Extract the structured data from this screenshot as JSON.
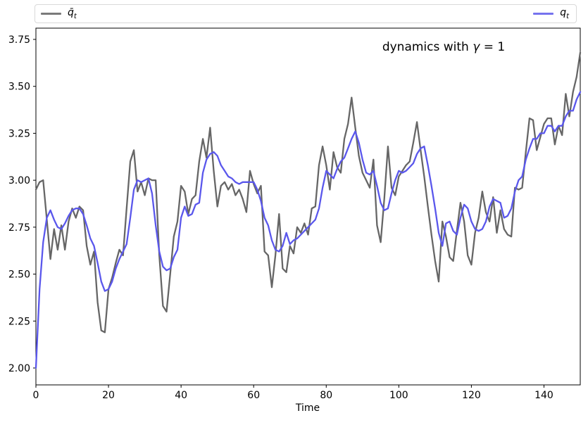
{
  "figure": {
    "background": "#ffffff",
    "annotation": {
      "pre": "dynamics with ",
      "gamma": "γ",
      "post": " = 1"
    },
    "xlabel": "Time"
  },
  "legend": {
    "border_color": "#d9d9d9",
    "entries": [
      {
        "base": "q̄",
        "sub": "t",
        "swatch_color": "#7a7a7a"
      },
      {
        "base": "q",
        "sub": "t",
        "swatch_color": "#7673ee"
      }
    ]
  },
  "chart_data": {
    "type": "line",
    "title": "dynamics with γ = 1",
    "xlabel": "Time",
    "ylabel": "",
    "xlim": [
      0,
      150
    ],
    "ylim": [
      1.91,
      3.81
    ],
    "x_ticks": [
      0,
      20,
      40,
      60,
      80,
      100,
      120,
      140
    ],
    "y_ticks": [
      "2.00",
      "2.25",
      "2.50",
      "2.75",
      "3.00",
      "3.25",
      "3.50",
      "3.75"
    ],
    "grid": false,
    "legend_position": "top, single box spanning plot width, q̄_t left / q_t right",
    "x_start": 0,
    "x_step": 1,
    "series": [
      {
        "name": "q̄_t",
        "color": "#666666",
        "values": [
          2.95,
          2.99,
          3.0,
          2.79,
          2.58,
          2.74,
          2.63,
          2.76,
          2.63,
          2.78,
          2.85,
          2.8,
          2.86,
          2.84,
          2.65,
          2.55,
          2.62,
          2.35,
          2.2,
          2.19,
          2.42,
          2.48,
          2.56,
          2.63,
          2.6,
          2.85,
          3.1,
          3.16,
          2.94,
          2.99,
          2.92,
          3.01,
          3.0,
          3.0,
          2.6,
          2.33,
          2.3,
          2.5,
          2.7,
          2.78,
          2.97,
          2.94,
          2.82,
          2.9,
          2.92,
          3.1,
          3.22,
          3.12,
          3.28,
          3.05,
          2.86,
          2.97,
          2.99,
          2.95,
          2.98,
          2.92,
          2.95,
          2.9,
          2.83,
          3.05,
          2.98,
          2.93,
          2.97,
          2.62,
          2.6,
          2.43,
          2.6,
          2.82,
          2.53,
          2.51,
          2.65,
          2.61,
          2.75,
          2.72,
          2.77,
          2.71,
          2.85,
          2.86,
          3.08,
          3.18,
          3.08,
          2.95,
          3.15,
          3.07,
          3.04,
          3.22,
          3.3,
          3.44,
          3.28,
          3.13,
          3.04,
          3.0,
          2.96,
          3.11,
          2.76,
          2.67,
          2.9,
          3.18,
          2.96,
          2.92,
          3.02,
          3.05,
          3.08,
          3.1,
          3.2,
          3.31,
          3.16,
          3.02,
          2.86,
          2.71,
          2.57,
          2.46,
          2.78,
          2.7,
          2.59,
          2.57,
          2.73,
          2.88,
          2.78,
          2.6,
          2.55,
          2.72,
          2.8,
          2.94,
          2.83,
          2.78,
          2.91,
          2.72,
          2.84,
          2.74,
          2.71,
          2.7,
          2.96,
          2.95,
          2.96,
          3.15,
          3.33,
          3.32,
          3.16,
          3.23,
          3.3,
          3.33,
          3.33,
          3.19,
          3.29,
          3.24,
          3.46,
          3.34,
          3.47,
          3.55,
          3.68
        ]
      },
      {
        "name": "q_t",
        "color": "#5a57ec",
        "values": [
          2.0,
          2.42,
          2.67,
          2.8,
          2.84,
          2.79,
          2.75,
          2.74,
          2.77,
          2.81,
          2.84,
          2.85,
          2.85,
          2.82,
          2.76,
          2.69,
          2.65,
          2.56,
          2.46,
          2.41,
          2.42,
          2.46,
          2.53,
          2.58,
          2.62,
          2.66,
          2.8,
          2.95,
          3.0,
          2.99,
          3.0,
          3.01,
          2.93,
          2.76,
          2.62,
          2.54,
          2.52,
          2.53,
          2.59,
          2.63,
          2.8,
          2.86,
          2.81,
          2.82,
          2.87,
          2.88,
          3.04,
          3.11,
          3.14,
          3.15,
          3.13,
          3.08,
          3.05,
          3.02,
          3.01,
          2.99,
          2.98,
          2.99,
          2.99,
          2.99,
          2.99,
          2.95,
          2.89,
          2.8,
          2.76,
          2.68,
          2.63,
          2.62,
          2.65,
          2.72,
          2.66,
          2.68,
          2.69,
          2.71,
          2.73,
          2.75,
          2.77,
          2.79,
          2.85,
          2.96,
          3.05,
          3.03,
          3.01,
          3.06,
          3.1,
          3.12,
          3.17,
          3.22,
          3.26,
          3.2,
          3.11,
          3.04,
          3.03,
          3.05,
          2.97,
          2.88,
          2.84,
          2.85,
          2.93,
          3.0,
          3.05,
          3.04,
          3.05,
          3.07,
          3.09,
          3.14,
          3.17,
          3.18,
          3.08,
          2.97,
          2.85,
          2.72,
          2.65,
          2.77,
          2.78,
          2.73,
          2.71,
          2.8,
          2.87,
          2.85,
          2.78,
          2.74,
          2.73,
          2.74,
          2.78,
          2.86,
          2.9,
          2.89,
          2.88,
          2.8,
          2.81,
          2.85,
          2.94,
          3.0,
          3.02,
          3.11,
          3.17,
          3.22,
          3.22,
          3.25,
          3.25,
          3.29,
          3.29,
          3.26,
          3.29,
          3.29,
          3.34,
          3.37,
          3.37,
          3.43,
          3.47
        ]
      }
    ]
  }
}
